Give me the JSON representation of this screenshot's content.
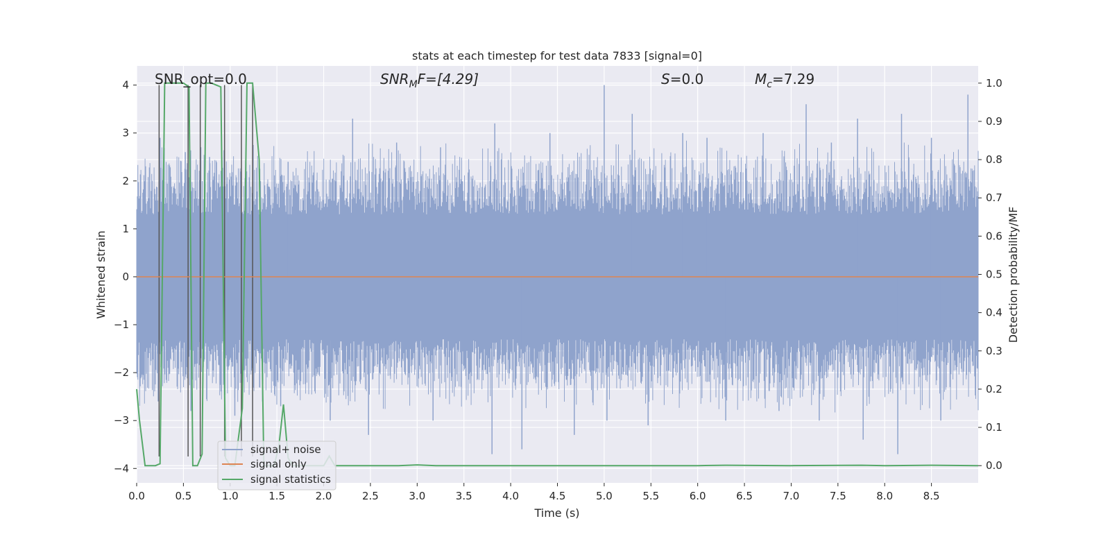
{
  "chart_data": {
    "type": "line",
    "title": "stats at each timestep for test data 7833 [signal=0]",
    "xlabel": "Time (s)",
    "ylabel": "Whitened strain",
    "ylabel_right": "Detection probability/MF",
    "xlim": [
      0.0,
      9.0
    ],
    "ylim": [
      -4.3,
      4.4
    ],
    "ylim_right": [
      -0.045,
      1.045
    ],
    "x_ticks": [
      "0.0",
      "0.5",
      "1.0",
      "1.5",
      "2.0",
      "2.5",
      "3.0",
      "3.5",
      "4.0",
      "4.5",
      "5.0",
      "5.5",
      "6.0",
      "6.5",
      "7.0",
      "7.5",
      "8.0",
      "8.5"
    ],
    "y_ticks": [
      "4",
      "3",
      "2",
      "1",
      "0",
      "−1",
      "−2",
      "−3",
      "−4"
    ],
    "y_right_ticks": [
      "1.0",
      "0.9",
      "0.8",
      "0.7",
      "0.6",
      "0.5",
      "0.4",
      "0.3",
      "0.2",
      "0.1",
      "0.0"
    ],
    "grid": true,
    "legend_position": "bottom-left",
    "annotations": {
      "snr_opt": "SNR_opt=0.0",
      "snr_mf_main": "SNR",
      "snr_mf_sub": "M",
      "snr_mf_rest": "F=[4.29]",
      "s_main": "S",
      "s_rest": "=0.0",
      "mc_main": "M",
      "mc_sub": "c",
      "mc_rest": "=7.29"
    },
    "colors": {
      "noise": "#8fa3cc",
      "signal_only": "#dd8452",
      "statistics": "#55a868",
      "background": "#eaeaf2",
      "grid": "#ffffff"
    },
    "series": [
      {
        "name": "signal+ noise",
        "axis": "left",
        "description_points": "dense noise band approx. ±1.7 with spikes up to ~4.0 and down to ~-3.7",
        "spikes_up": [
          [
            0.25,
            2.9
          ],
          [
            0.52,
            2.6
          ],
          [
            0.78,
            2.5
          ],
          [
            1.62,
            2.4
          ],
          [
            2.31,
            3.3
          ],
          [
            2.78,
            2.8
          ],
          [
            3.25,
            2.7
          ],
          [
            3.83,
            3.2
          ],
          [
            4.42,
            3.0
          ],
          [
            5.0,
            4.0
          ],
          [
            5.3,
            3.4
          ],
          [
            5.84,
            3.0
          ],
          [
            6.1,
            2.9
          ],
          [
            6.7,
            3.0
          ],
          [
            7.16,
            3.6
          ],
          [
            7.43,
            2.8
          ],
          [
            7.71,
            3.3
          ],
          [
            8.18,
            3.4
          ],
          [
            8.5,
            2.9
          ],
          [
            8.89,
            3.8
          ]
        ],
        "spikes_down": [
          [
            0.23,
            -2.6
          ],
          [
            0.58,
            -2.8
          ],
          [
            1.05,
            -2.9
          ],
          [
            1.54,
            -2.7
          ],
          [
            2.07,
            -3.0
          ],
          [
            2.48,
            -3.3
          ],
          [
            3.17,
            -3.0
          ],
          [
            3.8,
            -3.7
          ],
          [
            4.12,
            -3.6
          ],
          [
            4.68,
            -3.3
          ],
          [
            5.03,
            -3.0
          ],
          [
            5.47,
            -3.1
          ],
          [
            6.3,
            -3.0
          ],
          [
            6.87,
            -2.8
          ],
          [
            7.3,
            -3.0
          ],
          [
            7.77,
            -3.4
          ],
          [
            8.14,
            -3.7
          ],
          [
            8.6,
            -3.0
          ]
        ]
      },
      {
        "name": "signal only",
        "axis": "left",
        "x": [
          0.0,
          9.0
        ],
        "y": [
          0.0,
          0.0
        ]
      },
      {
        "name": "signal statistics",
        "axis": "right",
        "x": [
          0.0,
          0.03,
          0.09,
          0.2,
          0.25,
          0.3,
          0.5,
          0.56,
          0.6,
          0.65,
          0.7,
          0.74,
          0.8,
          0.9,
          0.95,
          1.0,
          1.05,
          1.13,
          1.18,
          1.24,
          1.31,
          1.36,
          1.41,
          1.47,
          1.52,
          1.57,
          1.62,
          1.67,
          2.0,
          2.06,
          2.12,
          2.18,
          2.8,
          3.0,
          3.2,
          4.0,
          5.0,
          6.0,
          6.3,
          7.0,
          7.75,
          8.0,
          8.5,
          9.0
        ],
        "y": [
          0.2,
          0.12,
          0.0,
          0.0,
          0.005,
          1.0,
          1.0,
          0.99,
          0.0,
          0.0,
          0.03,
          1.0,
          1.0,
          0.99,
          0.02,
          0.0,
          0.0,
          0.15,
          1.0,
          1.0,
          0.8,
          0.0,
          0.0,
          0.0,
          0.05,
          0.16,
          0.02,
          0.0,
          0.0,
          0.025,
          0.0,
          0.0,
          0.0,
          0.002,
          0.0,
          0.0,
          0.0,
          0.0,
          0.001,
          0.0,
          0.001,
          0.0,
          0.001,
          0.0
        ]
      }
    ],
    "marker_lines": [
      0.24,
      0.55,
      0.68,
      0.94,
      1.12,
      1.24
    ]
  }
}
